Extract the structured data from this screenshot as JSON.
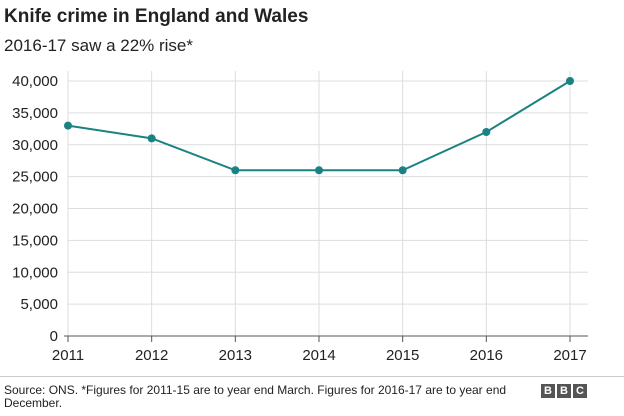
{
  "chart_data": {
    "type": "line",
    "title": "Knife crime in England and Wales",
    "subtitle": "2016-17 saw a 22% rise*",
    "x": [
      "2011",
      "2012",
      "2013",
      "2014",
      "2015",
      "2016",
      "2017"
    ],
    "series": [
      {
        "values": [
          33000,
          31000,
          26000,
          26000,
          26000,
          32000,
          40000
        ]
      }
    ],
    "yticks": [
      "0",
      "5,000",
      "10,000",
      "15,000",
      "20,000",
      "25,000",
      "30,000",
      "35,000",
      "40,000"
    ],
    "ytick_values": [
      0,
      5000,
      10000,
      15000,
      20000,
      25000,
      30000,
      35000,
      40000
    ],
    "ylim": [
      0,
      40000
    ],
    "grid": true,
    "line_color": "#1a8282",
    "grid_color": "#dddddd"
  },
  "footer": {
    "source": "Source: ONS. *Figures for 2011-15 are to year end March. Figures for 2016-17 are to year end December.",
    "brand": [
      "B",
      "B",
      "C"
    ]
  }
}
